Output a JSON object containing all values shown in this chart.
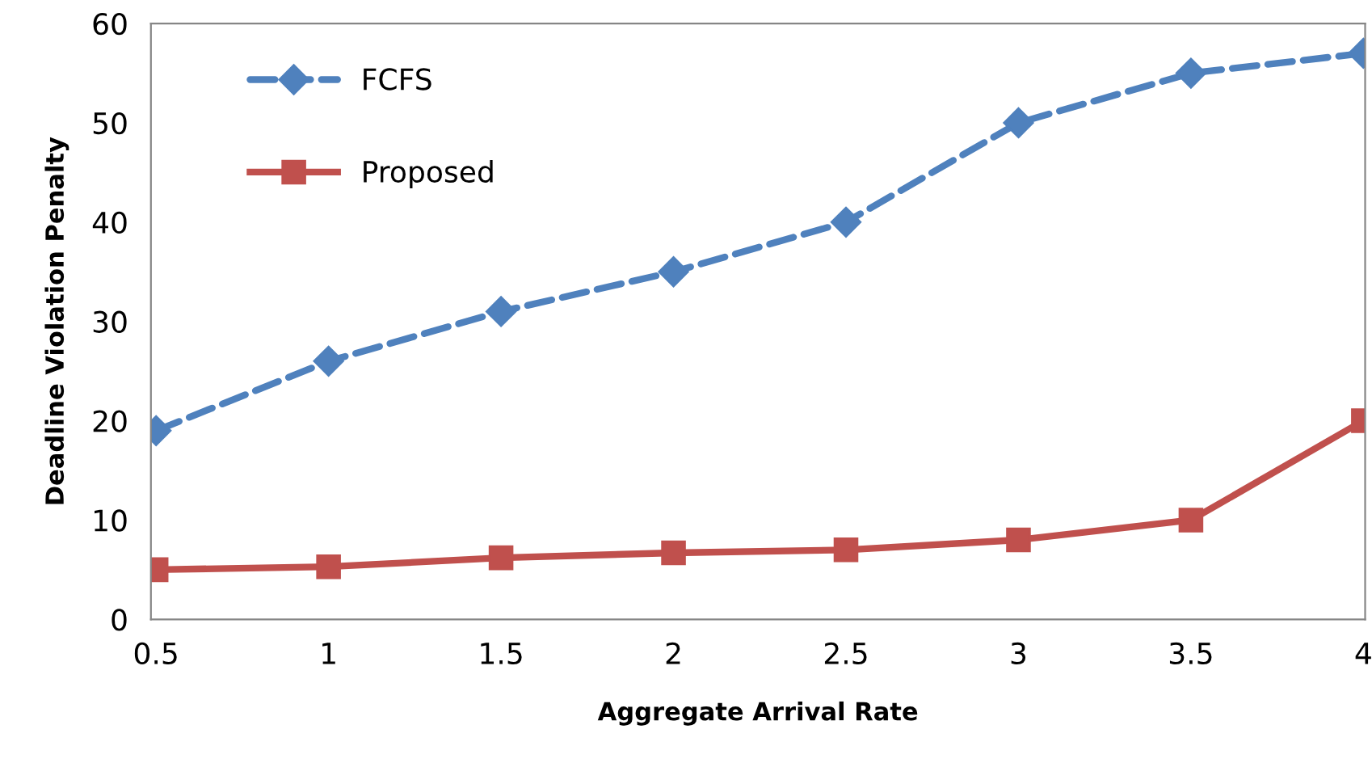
{
  "chart_data": {
    "type": "line",
    "xlabel": "Aggregate Arrival Rate",
    "ylabel": "Deadline Violation Penalty",
    "categories": [
      "0.5",
      "1",
      "1.5",
      "2",
      "2.5",
      "3",
      "3.5",
      "4"
    ],
    "series": [
      {
        "name": "FCFS",
        "color": "#4f81bd",
        "marker": "diamond",
        "line_style": "dashed",
        "values": [
          19,
          26,
          31,
          35,
          40,
          50,
          55,
          57
        ]
      },
      {
        "name": "Proposed",
        "color": "#c0504d",
        "marker": "square",
        "line_style": "solid",
        "values": [
          5,
          5.3,
          6.2,
          6.7,
          7,
          8,
          10,
          20
        ]
      }
    ],
    "ylim": [
      0,
      60
    ],
    "yticks": [
      0,
      10,
      20,
      30,
      40,
      50,
      60
    ],
    "grid": false,
    "legend": "top left"
  }
}
